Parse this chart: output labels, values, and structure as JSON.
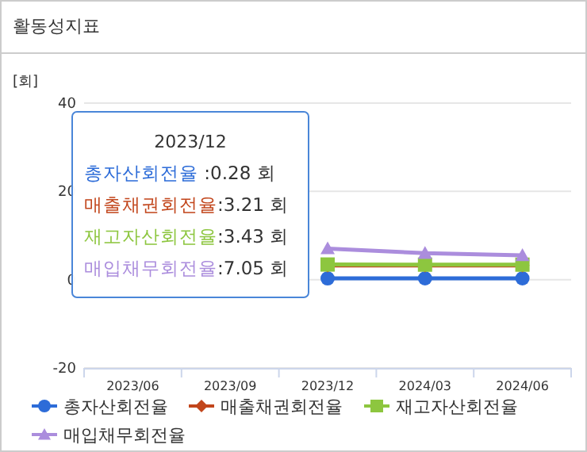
{
  "chart_data": {
    "type": "line",
    "title": "활동성지표",
    "ylabel": "[회]",
    "categories": [
      "2023/06",
      "2023/09",
      "2023/12",
      "2024/03",
      "2024/06"
    ],
    "series": [
      {
        "name": "총자산회전율",
        "color": "#2d6cd8",
        "marker": "circle",
        "values": [
          null,
          null,
          0.28,
          0.3,
          0.3
        ]
      },
      {
        "name": "매출채권회전율",
        "color": "#c2461c",
        "marker": "diamond",
        "values": [
          null,
          null,
          3.21,
          3.2,
          3.2
        ]
      },
      {
        "name": "재고자산회전율",
        "color": "#8dc63f",
        "marker": "square",
        "values": [
          null,
          null,
          3.43,
          3.4,
          3.4
        ]
      },
      {
        "name": "매입채무회전율",
        "color": "#ab8ddd",
        "marker": "triangle",
        "values": [
          null,
          null,
          7.05,
          6,
          5.5
        ]
      }
    ],
    "ylim": [
      -20,
      40
    ],
    "yticks": [
      -20,
      0,
      20,
      40
    ],
    "grid": "y",
    "legend": "bottom",
    "annotations": [
      "2023/12",
      "총자산회전율 :0.28 회",
      "매출채권회전율:3.21 회",
      "재고자산회전율:3.43 회",
      "매입채무회전율:7.05 회"
    ]
  }
}
